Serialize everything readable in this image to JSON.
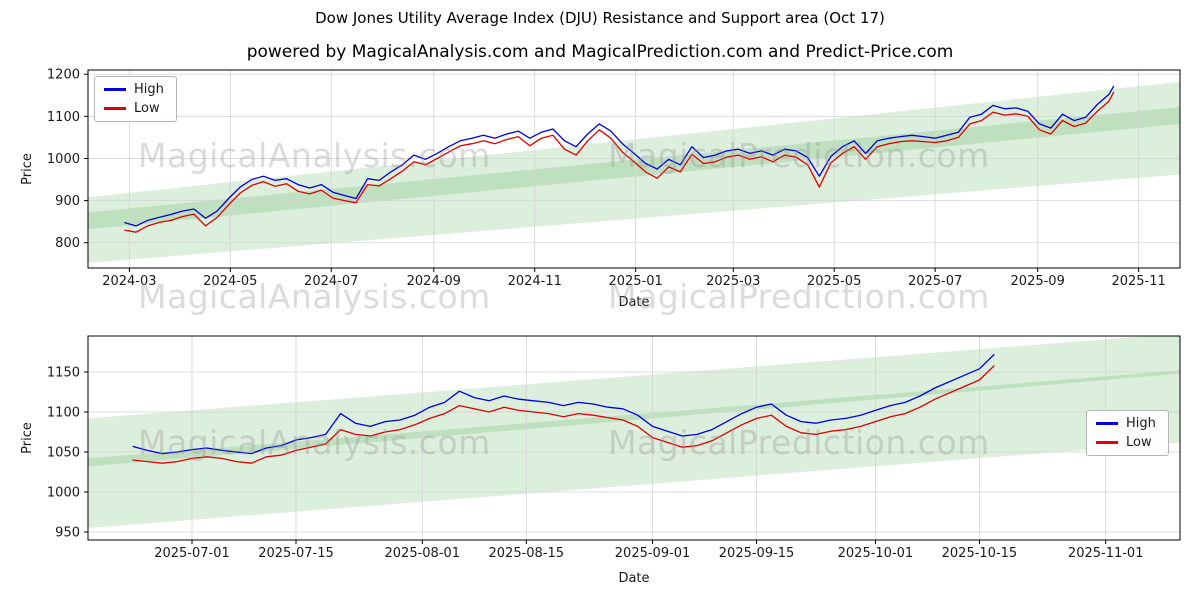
{
  "figure": {
    "title": "Dow Jones Utility Average Index (DJU) Resistance and Support area (Oct 17)",
    "subtitle": "powered by MagicalAnalysis.com and MagicalPrediction.com and Predict-Price.com",
    "background": "#ffffff"
  },
  "watermarks": {
    "rows": [
      {
        "left": "MagicalAnalysis.com",
        "right": "MagicalPrediction.com"
      },
      {
        "left": "MagicalAnalysis.com",
        "right": "MagicalPrediction.com"
      },
      {
        "left": "MagicalAnalysis.com",
        "right": "MagicalPrediction.com"
      }
    ]
  },
  "colors": {
    "high": "#0000e0",
    "low": "#e00000",
    "band": "#3c9e3c",
    "band_opacity": 0.18,
    "grid": "#d3d3d3",
    "axis": "#000000",
    "text": "#1a1a1a",
    "watermark": "rgba(145,145,145,0.33)"
  },
  "chart_data": [
    {
      "type": "line",
      "xlabel": "Date",
      "ylabel": "Price",
      "grid": true,
      "legend_position": "top-left",
      "x_unit": "days since 2024-03-01",
      "xlim": [
        -25,
        635
      ],
      "ylim": [
        740,
        1210
      ],
      "xticks": [
        {
          "v": 0,
          "label": "2024-03"
        },
        {
          "v": 61,
          "label": "2024-05"
        },
        {
          "v": 122,
          "label": "2024-07"
        },
        {
          "v": 184,
          "label": "2024-09"
        },
        {
          "v": 245,
          "label": "2024-11"
        },
        {
          "v": 306,
          "label": "2025-01"
        },
        {
          "v": 365,
          "label": "2025-03"
        },
        {
          "v": 426,
          "label": "2025-05"
        },
        {
          "v": 487,
          "label": "2025-07"
        },
        {
          "v": 549,
          "label": "2025-09"
        },
        {
          "v": 610,
          "label": "2025-11"
        }
      ],
      "yticks": [
        800,
        900,
        1000,
        1100,
        1200
      ],
      "bands": [
        {
          "name": "resistance-area",
          "x": [
            -25,
            635
          ],
          "lower": [
            832,
            1082
          ],
          "upper": [
            908,
            1182
          ]
        },
        {
          "name": "support-area",
          "x": [
            -25,
            635
          ],
          "lower": [
            752,
            962
          ],
          "upper": [
            872,
            1122
          ]
        }
      ],
      "series": [
        {
          "name": "High",
          "color": "#0000e0",
          "x": [
            -3,
            4,
            11,
            18,
            25,
            32,
            39,
            46,
            53,
            60,
            67,
            74,
            81,
            88,
            95,
            102,
            109,
            116,
            123,
            130,
            137,
            144,
            151,
            158,
            165,
            172,
            179,
            186,
            193,
            200,
            207,
            214,
            221,
            228,
            235,
            242,
            249,
            256,
            263,
            270,
            277,
            284,
            291,
            298,
            305,
            312,
            319,
            326,
            333,
            340,
            347,
            354,
            361,
            368,
            375,
            382,
            389,
            396,
            403,
            410,
            417,
            424,
            431,
            438,
            445,
            452,
            459,
            466,
            473,
            480,
            487,
            494,
            501,
            508,
            515,
            522,
            529,
            536,
            543,
            550,
            557,
            564,
            571,
            578,
            585,
            592,
            595
          ],
          "values": [
            848,
            840,
            853,
            860,
            867,
            875,
            880,
            858,
            875,
            905,
            932,
            950,
            958,
            948,
            952,
            938,
            930,
            938,
            920,
            912,
            905,
            952,
            948,
            968,
            985,
            1008,
            998,
            1012,
            1028,
            1042,
            1048,
            1055,
            1048,
            1058,
            1065,
            1048,
            1062,
            1070,
            1042,
            1028,
            1058,
            1082,
            1065,
            1035,
            1012,
            988,
            975,
            998,
            985,
            1028,
            1002,
            1008,
            1018,
            1022,
            1012,
            1018,
            1008,
            1022,
            1018,
            1002,
            958,
            1005,
            1028,
            1042,
            1012,
            1042,
            1048,
            1052,
            1055,
            1052,
            1048,
            1055,
            1062,
            1098,
            1105,
            1126,
            1118,
            1120,
            1112,
            1082,
            1072,
            1105,
            1090,
            1098,
            1128,
            1152,
            1172
          ]
        },
        {
          "name": "Low",
          "color": "#e00000",
          "x": [
            -3,
            4,
            11,
            18,
            25,
            32,
            39,
            46,
            53,
            60,
            67,
            74,
            81,
            88,
            95,
            102,
            109,
            116,
            123,
            130,
            137,
            144,
            151,
            158,
            165,
            172,
            179,
            186,
            193,
            200,
            207,
            214,
            221,
            228,
            235,
            242,
            249,
            256,
            263,
            270,
            277,
            284,
            291,
            298,
            305,
            312,
            319,
            326,
            333,
            340,
            347,
            354,
            361,
            368,
            375,
            382,
            389,
            396,
            403,
            410,
            417,
            424,
            431,
            438,
            445,
            452,
            459,
            466,
            473,
            480,
            487,
            494,
            501,
            508,
            515,
            522,
            529,
            536,
            543,
            550,
            557,
            564,
            571,
            578,
            585,
            592,
            595
          ],
          "values": [
            830,
            825,
            840,
            848,
            853,
            862,
            868,
            840,
            860,
            890,
            918,
            936,
            945,
            934,
            940,
            922,
            916,
            925,
            906,
            900,
            895,
            938,
            935,
            952,
            970,
            992,
            985,
            1000,
            1015,
            1030,
            1035,
            1042,
            1035,
            1045,
            1052,
            1030,
            1048,
            1055,
            1022,
            1008,
            1042,
            1068,
            1048,
            1015,
            992,
            968,
            953,
            980,
            968,
            1010,
            988,
            992,
            1003,
            1008,
            998,
            1004,
            992,
            1008,
            1003,
            985,
            932,
            990,
            1012,
            1028,
            998,
            1028,
            1035,
            1040,
            1042,
            1040,
            1038,
            1042,
            1050,
            1082,
            1090,
            1110,
            1103,
            1106,
            1100,
            1068,
            1058,
            1090,
            1076,
            1084,
            1112,
            1136,
            1158
          ]
        }
      ]
    },
    {
      "type": "line",
      "xlabel": "Date",
      "ylabel": "Price",
      "grid": true,
      "legend_position": "center-right",
      "x_unit": "days since 2025-07-01",
      "xlim": [
        -14,
        133
      ],
      "ylim": [
        940,
        1195
      ],
      "xticks": [
        {
          "v": 0,
          "label": "2025-07-01"
        },
        {
          "v": 14,
          "label": "2025-07-15"
        },
        {
          "v": 31,
          "label": "2025-08-01"
        },
        {
          "v": 45,
          "label": "2025-08-15"
        },
        {
          "v": 62,
          "label": "2025-09-01"
        },
        {
          "v": 76,
          "label": "2025-09-15"
        },
        {
          "v": 92,
          "label": "2025-10-01"
        },
        {
          "v": 106,
          "label": "2025-10-15"
        },
        {
          "v": 123,
          "label": "2025-11-01"
        }
      ],
      "yticks": [
        950,
        1000,
        1050,
        1100,
        1150
      ],
      "bands": [
        {
          "name": "resistance-area",
          "x": [
            -14,
            133
          ],
          "lower": [
            1032,
            1148
          ],
          "upper": [
            1092,
            1198
          ]
        },
        {
          "name": "support-area",
          "x": [
            -14,
            133
          ],
          "lower": [
            955,
            1062
          ],
          "upper": [
            1042,
            1152
          ]
        }
      ],
      "series": [
        {
          "name": "High",
          "color": "#0000e0",
          "x": [
            -8,
            -6,
            -4,
            -2,
            0,
            2,
            4,
            6,
            8,
            10,
            12,
            14,
            16,
            18,
            20,
            22,
            24,
            26,
            28,
            30,
            32,
            34,
            36,
            38,
            40,
            42,
            44,
            46,
            48,
            50,
            52,
            54,
            56,
            58,
            60,
            62,
            64,
            66,
            68,
            70,
            72,
            74,
            76,
            78,
            80,
            82,
            84,
            86,
            88,
            90,
            92,
            94,
            96,
            98,
            100,
            102,
            104,
            106,
            108
          ],
          "values": [
            1057,
            1052,
            1048,
            1050,
            1053,
            1055,
            1052,
            1050,
            1048,
            1055,
            1058,
            1065,
            1068,
            1072,
            1098,
            1086,
            1082,
            1088,
            1090,
            1096,
            1106,
            1112,
            1126,
            1118,
            1114,
            1120,
            1116,
            1114,
            1112,
            1108,
            1112,
            1110,
            1106,
            1104,
            1096,
            1082,
            1076,
            1070,
            1072,
            1078,
            1088,
            1098,
            1106,
            1110,
            1096,
            1088,
            1086,
            1090,
            1092,
            1096,
            1102,
            1108,
            1112,
            1120,
            1130,
            1138,
            1146,
            1154,
            1172
          ]
        },
        {
          "name": "Low",
          "color": "#e00000",
          "x": [
            -8,
            -6,
            -4,
            -2,
            0,
            2,
            4,
            6,
            8,
            10,
            12,
            14,
            16,
            18,
            20,
            22,
            24,
            26,
            28,
            30,
            32,
            34,
            36,
            38,
            40,
            42,
            44,
            46,
            48,
            50,
            52,
            54,
            56,
            58,
            60,
            62,
            64,
            66,
            68,
            70,
            72,
            74,
            76,
            78,
            80,
            82,
            84,
            86,
            88,
            90,
            92,
            94,
            96,
            98,
            100,
            102,
            104,
            106,
            108
          ],
          "values": [
            1040,
            1038,
            1036,
            1038,
            1042,
            1044,
            1042,
            1038,
            1036,
            1044,
            1046,
            1052,
            1056,
            1060,
            1078,
            1072,
            1070,
            1075,
            1078,
            1084,
            1092,
            1098,
            1108,
            1104,
            1100,
            1106,
            1102,
            1100,
            1098,
            1094,
            1098,
            1096,
            1093,
            1090,
            1082,
            1068,
            1062,
            1056,
            1058,
            1064,
            1074,
            1084,
            1092,
            1096,
            1082,
            1074,
            1072,
            1076,
            1078,
            1082,
            1088,
            1094,
            1098,
            1106,
            1116,
            1124,
            1132,
            1140,
            1158
          ]
        }
      ]
    }
  ]
}
